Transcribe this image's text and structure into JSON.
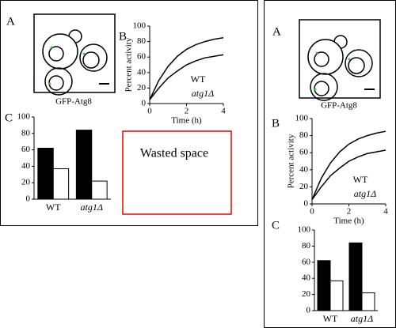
{
  "panel_labels": [
    "A",
    "B",
    "C"
  ],
  "micrograph_label": "GFP-Atg8",
  "wasted_space": "Wasted space",
  "chart_data": [
    {
      "type": "line",
      "x": [
        0,
        0.5,
        1,
        1.5,
        2,
        2.5,
        3,
        3.5,
        4
      ],
      "series": [
        {
          "name": "WT",
          "color": "#000000",
          "values": [
            5,
            30,
            48,
            61,
            70,
            76,
            80,
            83,
            85
          ]
        },
        {
          "name": "atg1Δ",
          "color": "#000000",
          "values": [
            5,
            20,
            33,
            42,
            50,
            55,
            59,
            61,
            63
          ]
        }
      ],
      "x_label": "Time (h)",
      "y_label": "Percent activity",
      "xlim": [
        0,
        4
      ],
      "xticks": [
        0,
        2,
        4
      ],
      "ylim": [
        0,
        100
      ],
      "yticks": [
        0,
        20,
        40,
        60,
        80,
        100
      ]
    },
    {
      "type": "bar",
      "categories": [
        "WT",
        "atg1Δ"
      ],
      "series": [
        {
          "color": "#000000",
          "values": [
            62,
            84
          ]
        },
        {
          "color": "#ffffff",
          "values": [
            37,
            22
          ]
        }
      ],
      "ylim": [
        0,
        100
      ],
      "yticks": [
        0,
        20,
        40,
        60,
        80,
        100
      ]
    }
  ]
}
